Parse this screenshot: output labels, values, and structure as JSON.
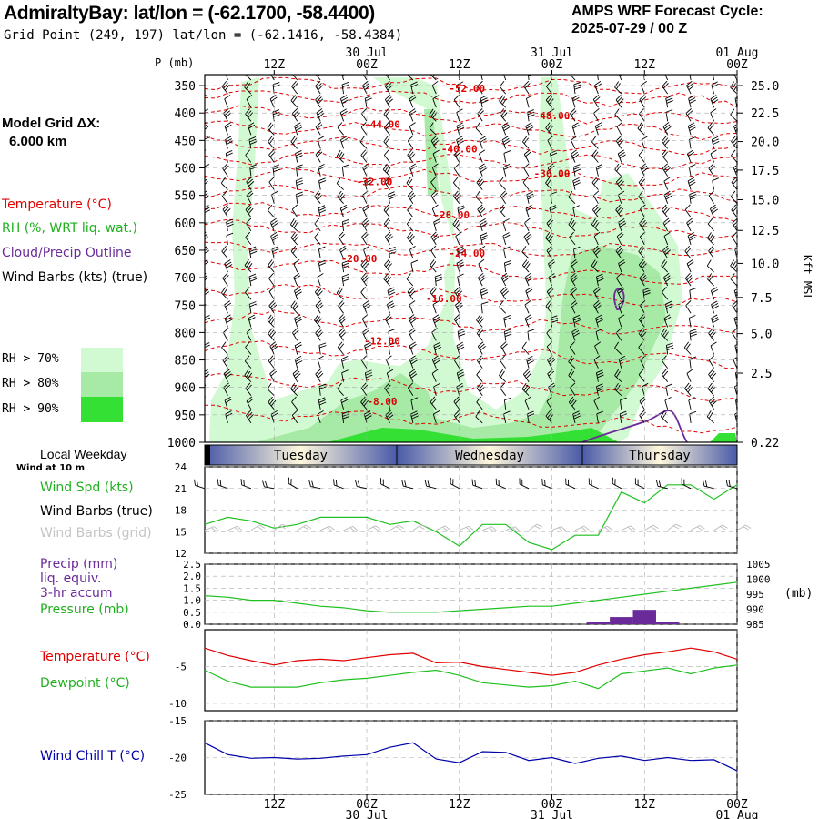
{
  "header": {
    "station_title": "AdmiraltyBay:  lat/lon = (-62.1700, -58.4400)",
    "grid_point": "Grid Point (249, 197) lat/lon = (-62.1416, -58.4384)",
    "cycle_line1": "AMPS WRF Forecast Cycle:",
    "cycle_line2": "2025-07-29 / 00  Z"
  },
  "colors": {
    "temperature": "#e00000",
    "rh": "#20c020",
    "cloud": "#6a2a9a",
    "wind_chill": "#0000aa",
    "precip_bar": "#6a2a9a",
    "rh70": "#d2fad2",
    "rh80": "#a6eaa6",
    "rh90": "#34e034"
  },
  "time_axis": {
    "top_date_labels": [
      "30 Jul",
      "31 Jul",
      "01 Aug"
    ],
    "top_hour_labels": [
      "12Z",
      "00Z",
      "12Z",
      "00Z",
      "12Z",
      "00Z"
    ],
    "bottom_hour_labels": [
      "12Z",
      "00Z",
      "12Z",
      "00Z",
      "12Z",
      "00Z"
    ],
    "bottom_date_labels": [
      "30 Jul",
      "31 Jul",
      "01 Aug"
    ],
    "hour_positions": [
      12,
      24,
      36,
      48,
      60,
      72
    ],
    "date_positions": [
      24,
      48,
      72
    ],
    "range_hours": [
      3,
      72
    ]
  },
  "legend": {
    "model_grid_label": "Model Grid ΔX:",
    "model_grid_value": "6.000 km",
    "temperature": "Temperature (°C)",
    "rh": "RH (%, WRT liq. wat.)",
    "cloud": "Cloud/Precip Outline",
    "wind_barbs": "Wind Barbs (kts) (true)",
    "rh70": "RH > 70%",
    "rh80": "RH > 80%",
    "rh90": "RH > 90%"
  },
  "upper_panel": {
    "p_axis_label": "P (mb)",
    "p_ticks": [
      "350",
      "400",
      "450",
      "500",
      "550",
      "600",
      "650",
      "700",
      "750",
      "800",
      "850",
      "900",
      "950",
      "1000"
    ],
    "p_range": [
      330,
      1000
    ],
    "height_axis_label": "Kft MSL",
    "height_ticks": [
      "25.0",
      "22.5",
      "20.0",
      "17.5",
      "15.0",
      "12.5",
      "10.0",
      "7.5",
      "5.0",
      "2.5",
      "0.22"
    ],
    "height_tick_pressures": [
      350,
      400,
      452,
      504,
      558,
      614,
      674,
      736,
      802,
      874,
      1000
    ],
    "isotherm_labels": [
      {
        "text": "-52.00",
        "t": 37,
        "p": 355
      },
      {
        "text": "-48.00",
        "t": 48,
        "p": 405
      },
      {
        "text": "-44.00",
        "t": 26,
        "p": 420
      },
      {
        "text": "-40.00",
        "t": 36,
        "p": 465
      },
      {
        "text": "-36.00",
        "t": 48,
        "p": 510
      },
      {
        "text": "-32.00",
        "t": 25,
        "p": 525
      },
      {
        "text": "-28.00",
        "t": 35,
        "p": 585
      },
      {
        "text": "-24.00",
        "t": 37,
        "p": 655
      },
      {
        "text": "-20.00",
        "t": 23,
        "p": 665
      },
      {
        "text": "-16.00",
        "t": 34,
        "p": 738
      },
      {
        "text": "-12.00",
        "t": 26,
        "p": 815
      },
      {
        "text": "-8.00",
        "t": 26,
        "p": 925
      }
    ]
  },
  "weekday_band": {
    "label": "Local Weekday",
    "days": [
      "Tuesday",
      "Wednesday",
      "Thursday"
    ]
  },
  "wind_panel": {
    "sub_label": "Wind at 10 m",
    "legend_speed": "Wind Spd (kts)",
    "legend_barbs_true": "Wind Barbs (true)",
    "legend_barbs_grid": "Wind Barbs (grid)",
    "y_ticks": [
      "24",
      "21",
      "18",
      "15",
      "12"
    ],
    "y_range": [
      12,
      24
    ]
  },
  "precip_panel": {
    "legend_precip": "Precip (mm)",
    "legend_liq": "liq. equiv.",
    "legend_accum": "3-hr accum",
    "legend_pressure": "Pressure (mb)",
    "left_ticks": [
      "2.5",
      "2.0",
      "1.5",
      "1.0",
      "0.5",
      "0.0"
    ],
    "right_ticks": [
      "1005",
      "1000",
      "995",
      "990",
      "985"
    ],
    "right_unit": "(mb)",
    "precip_range": [
      0,
      2.5
    ],
    "pressure_range": [
      985,
      1005
    ]
  },
  "temp_panel": {
    "legend_temp": "Temperature (°C)",
    "legend_dew": "Dewpoint (°C)",
    "y_ticks": [
      "-5",
      "-10"
    ],
    "y_range": [
      -11,
      0
    ]
  },
  "chill_panel": {
    "legend": "Wind Chill T (°C)",
    "y_ticks": [
      "-15",
      "-20",
      "-25"
    ],
    "y_range": [
      -25,
      -15
    ]
  },
  "chart_data": {
    "type": "line",
    "x_unit": "forecast hour from 2025-07-29 00Z",
    "x": [
      3,
      6,
      9,
      12,
      15,
      18,
      21,
      24,
      27,
      30,
      33,
      36,
      39,
      42,
      45,
      48,
      51,
      54,
      57,
      60,
      63,
      66,
      69,
      72
    ],
    "series": [
      {
        "name": "Wind Spd (kts)",
        "values": [
          16,
          17,
          16.5,
          15.5,
          16,
          17,
          17,
          17,
          16,
          16.5,
          15,
          13,
          16,
          16,
          13.5,
          12.5,
          14.5,
          14.5,
          20.5,
          19,
          21.5,
          21.5,
          19.5,
          21.5
        ]
      },
      {
        "name": "Pressure (mb)",
        "values": [
          994.5,
          994,
          993,
          993,
          992,
          991,
          990.5,
          989.5,
          989,
          989,
          989,
          989.5,
          990,
          990.5,
          991,
          991,
          992,
          993,
          994,
          995,
          996,
          997,
          998,
          999
        ]
      },
      {
        "name": "Precip (mm)",
        "values": [
          0,
          0,
          0,
          0,
          0,
          0,
          0,
          0,
          0,
          0,
          0,
          0,
          0,
          0,
          0,
          0,
          0,
          0.1,
          0.3,
          0.6,
          0.1,
          0,
          0,
          0
        ]
      },
      {
        "name": "Temperature (°C)",
        "values": [
          -2.5,
          -3.5,
          -4.2,
          -4.8,
          -4.2,
          -4.0,
          -4.2,
          -3.8,
          -3.4,
          -3.2,
          -4.5,
          -4.4,
          -5.0,
          -5.4,
          -5.8,
          -6.2,
          -5.8,
          -4.8,
          -4.0,
          -3.4,
          -3.0,
          -2.5,
          -3.0,
          -4.0
        ]
      },
      {
        "name": "Dewpoint (°C)",
        "values": [
          -5.5,
          -7.0,
          -7.8,
          -7.8,
          -7.8,
          -7.2,
          -6.8,
          -6.6,
          -6.2,
          -5.8,
          -5.5,
          -6.2,
          -7.2,
          -7.5,
          -7.8,
          -7.6,
          -7.0,
          -8.0,
          -6.0,
          -5.6,
          -5.2,
          -6.0,
          -5.2,
          -4.8
        ]
      },
      {
        "name": "Wind Chill T (°C)",
        "values": [
          -18.0,
          -19.6,
          -20.1,
          -20.0,
          -20.2,
          -20.1,
          -19.8,
          -19.6,
          -18.6,
          -18.0,
          -20.2,
          -20.7,
          -19.2,
          -19.3,
          -20.4,
          -20.0,
          -20.8,
          -20.1,
          -19.8,
          -20.4,
          -20.0,
          -20.4,
          -20.3,
          -21.8
        ]
      }
    ]
  }
}
